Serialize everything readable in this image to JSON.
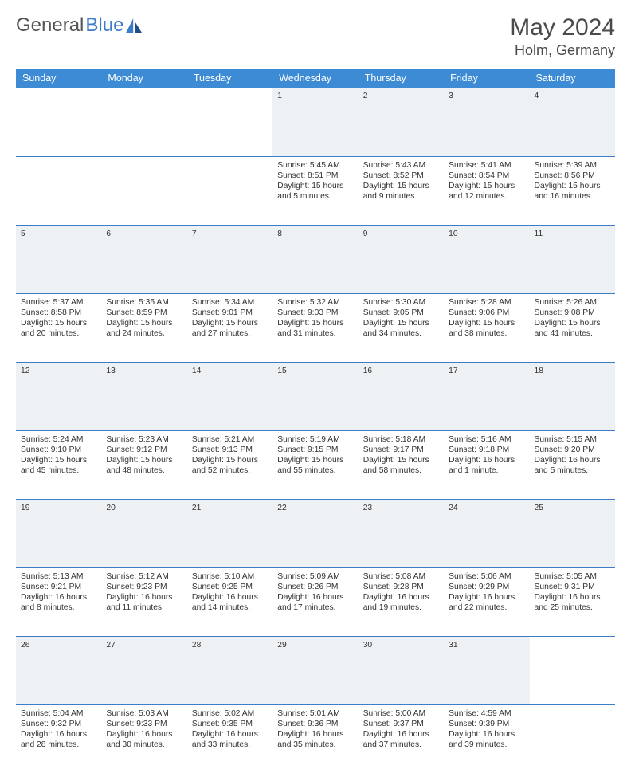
{
  "brand": {
    "part1": "General",
    "part2": "Blue"
  },
  "title": "May 2024",
  "location": "Holm, Germany",
  "colors": {
    "header_bg": "#3d8bd4",
    "header_fg": "#ffffff",
    "rule": "#3d7cc9",
    "daynum_bg": "#eef1f4",
    "text": "#333333",
    "logo_gray": "#555555",
    "logo_blue": "#3d7cc9"
  },
  "day_names": [
    "Sunday",
    "Monday",
    "Tuesday",
    "Wednesday",
    "Thursday",
    "Friday",
    "Saturday"
  ],
  "weeks": [
    {
      "days": [
        {
          "n": "",
          "lines": []
        },
        {
          "n": "",
          "lines": []
        },
        {
          "n": "",
          "lines": []
        },
        {
          "n": "1",
          "lines": [
            "Sunrise: 5:45 AM",
            "Sunset: 8:51 PM",
            "Daylight: 15 hours",
            "and 5 minutes."
          ]
        },
        {
          "n": "2",
          "lines": [
            "Sunrise: 5:43 AM",
            "Sunset: 8:52 PM",
            "Daylight: 15 hours",
            "and 9 minutes."
          ]
        },
        {
          "n": "3",
          "lines": [
            "Sunrise: 5:41 AM",
            "Sunset: 8:54 PM",
            "Daylight: 15 hours",
            "and 12 minutes."
          ]
        },
        {
          "n": "4",
          "lines": [
            "Sunrise: 5:39 AM",
            "Sunset: 8:56 PM",
            "Daylight: 15 hours",
            "and 16 minutes."
          ]
        }
      ]
    },
    {
      "days": [
        {
          "n": "5",
          "lines": [
            "Sunrise: 5:37 AM",
            "Sunset: 8:58 PM",
            "Daylight: 15 hours",
            "and 20 minutes."
          ]
        },
        {
          "n": "6",
          "lines": [
            "Sunrise: 5:35 AM",
            "Sunset: 8:59 PM",
            "Daylight: 15 hours",
            "and 24 minutes."
          ]
        },
        {
          "n": "7",
          "lines": [
            "Sunrise: 5:34 AM",
            "Sunset: 9:01 PM",
            "Daylight: 15 hours",
            "and 27 minutes."
          ]
        },
        {
          "n": "8",
          "lines": [
            "Sunrise: 5:32 AM",
            "Sunset: 9:03 PM",
            "Daylight: 15 hours",
            "and 31 minutes."
          ]
        },
        {
          "n": "9",
          "lines": [
            "Sunrise: 5:30 AM",
            "Sunset: 9:05 PM",
            "Daylight: 15 hours",
            "and 34 minutes."
          ]
        },
        {
          "n": "10",
          "lines": [
            "Sunrise: 5:28 AM",
            "Sunset: 9:06 PM",
            "Daylight: 15 hours",
            "and 38 minutes."
          ]
        },
        {
          "n": "11",
          "lines": [
            "Sunrise: 5:26 AM",
            "Sunset: 9:08 PM",
            "Daylight: 15 hours",
            "and 41 minutes."
          ]
        }
      ]
    },
    {
      "days": [
        {
          "n": "12",
          "lines": [
            "Sunrise: 5:24 AM",
            "Sunset: 9:10 PM",
            "Daylight: 15 hours",
            "and 45 minutes."
          ]
        },
        {
          "n": "13",
          "lines": [
            "Sunrise: 5:23 AM",
            "Sunset: 9:12 PM",
            "Daylight: 15 hours",
            "and 48 minutes."
          ]
        },
        {
          "n": "14",
          "lines": [
            "Sunrise: 5:21 AM",
            "Sunset: 9:13 PM",
            "Daylight: 15 hours",
            "and 52 minutes."
          ]
        },
        {
          "n": "15",
          "lines": [
            "Sunrise: 5:19 AM",
            "Sunset: 9:15 PM",
            "Daylight: 15 hours",
            "and 55 minutes."
          ]
        },
        {
          "n": "16",
          "lines": [
            "Sunrise: 5:18 AM",
            "Sunset: 9:17 PM",
            "Daylight: 15 hours",
            "and 58 minutes."
          ]
        },
        {
          "n": "17",
          "lines": [
            "Sunrise: 5:16 AM",
            "Sunset: 9:18 PM",
            "Daylight: 16 hours",
            "and 1 minute."
          ]
        },
        {
          "n": "18",
          "lines": [
            "Sunrise: 5:15 AM",
            "Sunset: 9:20 PM",
            "Daylight: 16 hours",
            "and 5 minutes."
          ]
        }
      ]
    },
    {
      "days": [
        {
          "n": "19",
          "lines": [
            "Sunrise: 5:13 AM",
            "Sunset: 9:21 PM",
            "Daylight: 16 hours",
            "and 8 minutes."
          ]
        },
        {
          "n": "20",
          "lines": [
            "Sunrise: 5:12 AM",
            "Sunset: 9:23 PM",
            "Daylight: 16 hours",
            "and 11 minutes."
          ]
        },
        {
          "n": "21",
          "lines": [
            "Sunrise: 5:10 AM",
            "Sunset: 9:25 PM",
            "Daylight: 16 hours",
            "and 14 minutes."
          ]
        },
        {
          "n": "22",
          "lines": [
            "Sunrise: 5:09 AM",
            "Sunset: 9:26 PM",
            "Daylight: 16 hours",
            "and 17 minutes."
          ]
        },
        {
          "n": "23",
          "lines": [
            "Sunrise: 5:08 AM",
            "Sunset: 9:28 PM",
            "Daylight: 16 hours",
            "and 19 minutes."
          ]
        },
        {
          "n": "24",
          "lines": [
            "Sunrise: 5:06 AM",
            "Sunset: 9:29 PM",
            "Daylight: 16 hours",
            "and 22 minutes."
          ]
        },
        {
          "n": "25",
          "lines": [
            "Sunrise: 5:05 AM",
            "Sunset: 9:31 PM",
            "Daylight: 16 hours",
            "and 25 minutes."
          ]
        }
      ]
    },
    {
      "days": [
        {
          "n": "26",
          "lines": [
            "Sunrise: 5:04 AM",
            "Sunset: 9:32 PM",
            "Daylight: 16 hours",
            "and 28 minutes."
          ]
        },
        {
          "n": "27",
          "lines": [
            "Sunrise: 5:03 AM",
            "Sunset: 9:33 PM",
            "Daylight: 16 hours",
            "and 30 minutes."
          ]
        },
        {
          "n": "28",
          "lines": [
            "Sunrise: 5:02 AM",
            "Sunset: 9:35 PM",
            "Daylight: 16 hours",
            "and 33 minutes."
          ]
        },
        {
          "n": "29",
          "lines": [
            "Sunrise: 5:01 AM",
            "Sunset: 9:36 PM",
            "Daylight: 16 hours",
            "and 35 minutes."
          ]
        },
        {
          "n": "30",
          "lines": [
            "Sunrise: 5:00 AM",
            "Sunset: 9:37 PM",
            "Daylight: 16 hours",
            "and 37 minutes."
          ]
        },
        {
          "n": "31",
          "lines": [
            "Sunrise: 4:59 AM",
            "Sunset: 9:39 PM",
            "Daylight: 16 hours",
            "and 39 minutes."
          ]
        },
        {
          "n": "",
          "lines": []
        }
      ]
    }
  ]
}
